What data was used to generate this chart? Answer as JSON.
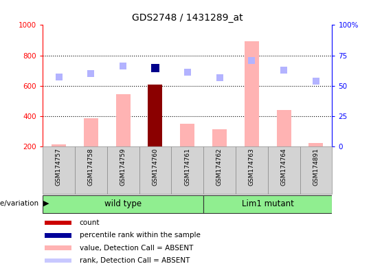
{
  "title": "GDS2748 / 1431289_at",
  "samples": [
    "GSM174757",
    "GSM174758",
    "GSM174759",
    "GSM174760",
    "GSM174761",
    "GSM174762",
    "GSM174763",
    "GSM174764",
    "GSM174891"
  ],
  "bar_values": [
    215,
    385,
    545,
    607,
    348,
    312,
    893,
    440,
    225
  ],
  "bar_colors": [
    "#ffb3b3",
    "#ffb3b3",
    "#ffb3b3",
    "#8b0000",
    "#ffb3b3",
    "#ffb3b3",
    "#ffb3b3",
    "#ffb3b3",
    "#ffb3b3"
  ],
  "rank_dots": [
    660,
    680,
    730,
    715,
    688,
    655,
    768,
    705,
    632
  ],
  "rank_dot_colors": [
    "#b3b3ff",
    "#b3b3ff",
    "#b3b3ff",
    "#00008b",
    "#b3b3ff",
    "#b3b3ff",
    "#b3b3ff",
    "#b3b3ff",
    "#b3b3ff"
  ],
  "rank_dot_sizes": [
    55,
    55,
    55,
    75,
    55,
    55,
    55,
    55,
    55
  ],
  "ylim_left": [
    200,
    1000
  ],
  "ylim_right": [
    0,
    100
  ],
  "yticks_left": [
    200,
    400,
    600,
    800,
    1000
  ],
  "yticks_right": [
    0,
    25,
    50,
    75,
    100
  ],
  "group_wt": {
    "label": "wild type",
    "start": 0,
    "end": 4
  },
  "group_mut": {
    "label": "Lim1 mutant",
    "start": 5,
    "end": 8
  },
  "group_color": "#90EE90",
  "group_label": "genotype/variation",
  "legend_items": [
    {
      "color": "#cc0000",
      "label": "count"
    },
    {
      "color": "#000099",
      "label": "percentile rank within the sample"
    },
    {
      "color": "#ffb3b3",
      "label": "value, Detection Call = ABSENT"
    },
    {
      "color": "#c8c8ff",
      "label": "rank, Detection Call = ABSENT"
    }
  ],
  "bar_bottom": 200,
  "bg_color": "#d3d3d3",
  "plot_bg": "#ffffff",
  "bar_width": 0.45
}
